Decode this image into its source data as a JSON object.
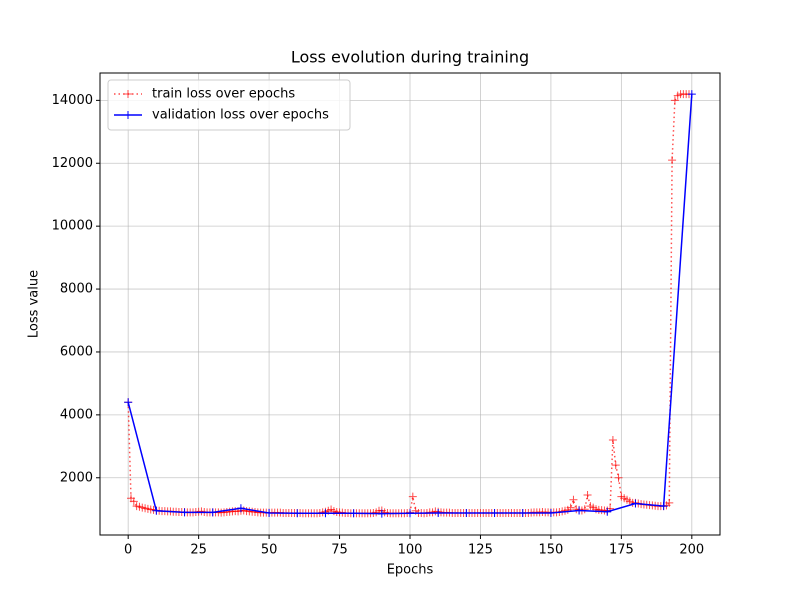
{
  "chart_data": {
    "type": "line",
    "title": "Loss evolution during training",
    "x_label": "Epochs",
    "y_label": "Loss value",
    "xlim": [
      -10,
      210
    ],
    "ylim": [
      180,
      14870
    ],
    "xticks": [
      0,
      25,
      50,
      75,
      100,
      125,
      150,
      175,
      200
    ],
    "yticks": [
      2000,
      4000,
      6000,
      8000,
      10000,
      12000,
      14000
    ],
    "grid": true,
    "legend": "upper left",
    "series": [
      {
        "name": "train loss over epochs",
        "color": "#ff0000",
        "style": "dotted",
        "x": [
          0,
          1,
          2,
          3,
          4,
          5,
          6,
          7,
          8,
          9,
          10,
          11,
          12,
          13,
          14,
          15,
          16,
          17,
          18,
          19,
          20,
          21,
          22,
          23,
          24,
          25,
          26,
          27,
          28,
          29,
          30,
          31,
          32,
          33,
          34,
          35,
          36,
          37,
          38,
          39,
          40,
          41,
          42,
          43,
          44,
          45,
          46,
          47,
          48,
          49,
          50,
          51,
          52,
          53,
          54,
          55,
          56,
          57,
          58,
          59,
          60,
          61,
          62,
          63,
          64,
          65,
          66,
          67,
          68,
          69,
          70,
          71,
          72,
          73,
          74,
          75,
          76,
          77,
          78,
          79,
          80,
          81,
          82,
          83,
          84,
          85,
          86,
          87,
          88,
          89,
          90,
          91,
          92,
          93,
          94,
          95,
          96,
          97,
          98,
          99,
          100,
          101,
          102,
          103,
          104,
          105,
          106,
          107,
          108,
          109,
          110,
          111,
          112,
          113,
          114,
          115,
          116,
          117,
          118,
          119,
          120,
          121,
          122,
          123,
          124,
          125,
          126,
          127,
          128,
          129,
          130,
          131,
          132,
          133,
          134,
          135,
          136,
          137,
          138,
          139,
          140,
          141,
          142,
          143,
          144,
          145,
          146,
          147,
          148,
          149,
          150,
          151,
          152,
          153,
          154,
          155,
          156,
          157,
          158,
          159,
          160,
          161,
          162,
          163,
          164,
          165,
          166,
          167,
          168,
          169,
          170,
          171,
          172,
          173,
          174,
          175,
          176,
          177,
          178,
          179,
          180,
          181,
          182,
          183,
          184,
          185,
          186,
          187,
          188,
          189,
          190,
          191,
          192,
          193,
          194,
          195,
          196,
          197,
          198,
          199
        ],
        "values": [
          4400,
          1350,
          1250,
          1100,
          1080,
          1050,
          1030,
          1010,
          990,
          980,
          960,
          950,
          940,
          940,
          930,
          930,
          920,
          920,
          910,
          910,
          910,
          900,
          900,
          900,
          910,
          920,
          930,
          910,
          900,
          900,
          900,
          900,
          900,
          890,
          900,
          910,
          920,
          930,
          940,
          930,
          950,
          960,
          940,
          930,
          920,
          910,
          900,
          890,
          890,
          890,
          890,
          890,
          890,
          890,
          890,
          880,
          880,
          880,
          880,
          880,
          880,
          880,
          870,
          870,
          870,
          870,
          870,
          870,
          880,
          900,
          920,
          950,
          990,
          940,
          910,
          900,
          890,
          880,
          880,
          870,
          870,
          870,
          870,
          870,
          870,
          870,
          870,
          880,
          900,
          950,
          960,
          900,
          880,
          870,
          870,
          870,
          870,
          870,
          870,
          880,
          900,
          1400,
          950,
          880,
          880,
          870,
          880,
          900,
          900,
          930,
          920,
          900,
          890,
          890,
          890,
          880,
          880,
          880,
          880,
          880,
          880,
          880,
          880,
          880,
          880,
          880,
          880,
          880,
          880,
          880,
          880,
          880,
          880,
          880,
          880,
          880,
          880,
          880,
          880,
          880,
          880,
          880,
          880,
          890,
          900,
          900,
          900,
          910,
          900,
          900,
          900,
          900,
          900,
          910,
          930,
          950,
          980,
          1050,
          1300,
          1000,
          980,
          960,
          1000,
          1450,
          1100,
          1050,
          1000,
          980,
          970,
          960,
          960,
          1020,
          3200,
          2400,
          2000,
          1400,
          1350,
          1300,
          1250,
          1200,
          1200,
          1180,
          1160,
          1150,
          1140,
          1130,
          1120,
          1110,
          1100,
          1100,
          1100,
          1120,
          1200,
          12100,
          14000,
          14150,
          14200,
          14200,
          14200,
          14200
        ]
      },
      {
        "name": "validation loss over epochs",
        "color": "#0000ff",
        "style": "solid",
        "x": [
          0,
          10,
          20,
          30,
          40,
          50,
          60,
          70,
          80,
          90,
          100,
          110,
          120,
          130,
          140,
          150,
          160,
          170,
          180,
          190,
          200
        ],
        "values": [
          4400,
          950,
          900,
          900,
          1030,
          880,
          870,
          870,
          870,
          860,
          870,
          880,
          880,
          880,
          880,
          880,
          960,
          920,
          1180,
          1100,
          14200
        ]
      }
    ]
  }
}
